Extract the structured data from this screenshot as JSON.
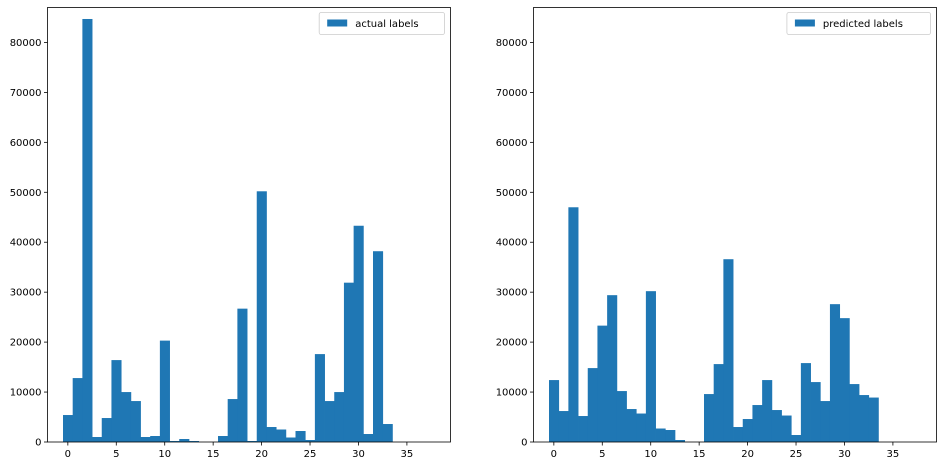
{
  "chart_data": [
    {
      "type": "bar",
      "legend": "actual labels",
      "legend_position": "top-right",
      "grid": false,
      "color": "#1f77b4",
      "xlim": [
        -2.1,
        39.5
      ],
      "ylim": [
        0,
        87000
      ],
      "xticks": [
        0,
        5,
        10,
        15,
        20,
        25,
        30,
        35
      ],
      "yticks": [
        0,
        10000,
        20000,
        30000,
        40000,
        50000,
        60000,
        70000,
        80000
      ],
      "x": [
        0,
        1,
        2,
        3,
        4,
        5,
        6,
        7,
        8,
        9,
        10,
        11,
        12,
        13,
        14,
        15,
        16,
        17,
        18,
        19,
        20,
        21,
        22,
        23,
        24,
        25,
        26,
        27,
        28,
        29,
        30,
        31,
        32,
        33,
        34,
        35,
        36,
        37
      ],
      "values": [
        5400,
        12800,
        84700,
        1000,
        4800,
        16400,
        10000,
        8200,
        1000,
        1200,
        20300,
        200,
        600,
        200,
        0,
        0,
        1200,
        8600,
        26700,
        200,
        50200,
        3000,
        2500,
        900,
        2200,
        400,
        17600,
        8200,
        10000,
        31900,
        43300,
        1600,
        38200,
        3600,
        0,
        0,
        0,
        0
      ]
    },
    {
      "type": "bar",
      "legend": "predicted labels",
      "legend_position": "top-right",
      "grid": false,
      "color": "#1f77b4",
      "xlim": [
        -2.1,
        39.5
      ],
      "ylim": [
        0,
        87000
      ],
      "xticks": [
        0,
        5,
        10,
        15,
        20,
        25,
        30,
        35
      ],
      "yticks": [
        0,
        10000,
        20000,
        30000,
        40000,
        50000,
        60000,
        70000,
        80000
      ],
      "x": [
        0,
        1,
        2,
        3,
        4,
        5,
        6,
        7,
        8,
        9,
        10,
        11,
        12,
        13,
        14,
        15,
        16,
        17,
        18,
        19,
        20,
        21,
        22,
        23,
        24,
        25,
        26,
        27,
        28,
        29,
        30,
        31,
        32,
        33,
        34,
        35,
        36,
        37
      ],
      "values": [
        12400,
        6200,
        47000,
        5200,
        14800,
        23300,
        29400,
        10200,
        6600,
        5700,
        30200,
        2700,
        2400,
        400,
        0,
        0,
        9600,
        15600,
        36600,
        3000,
        4600,
        7400,
        12400,
        6400,
        5300,
        1400,
        15800,
        12000,
        8200,
        27600,
        24800,
        11600,
        9400,
        8900,
        0,
        0,
        0,
        0
      ]
    }
  ]
}
